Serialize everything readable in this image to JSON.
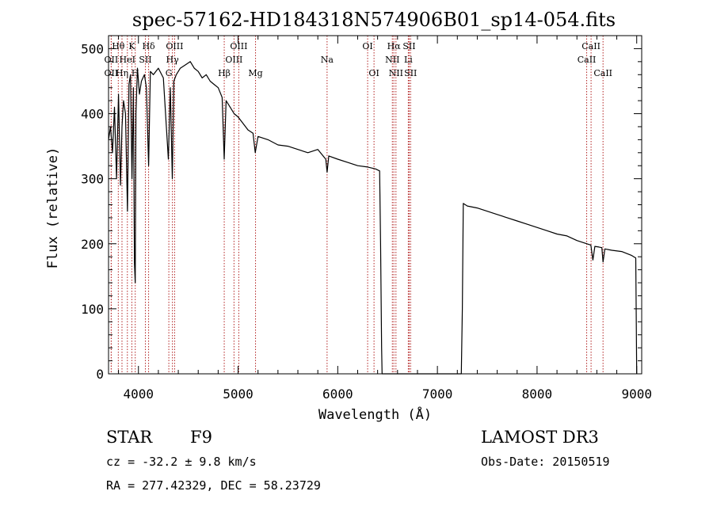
{
  "chart_data": {
    "type": "line",
    "title": "spec-57162-HD184318N574906B01_sp14-054.fits",
    "xlabel": "Wavelength (Å)",
    "ylabel": "Flux (relative)",
    "xlim": [
      3700,
      9050
    ],
    "ylim": [
      0,
      520
    ],
    "xticks": [
      4000,
      5000,
      6000,
      7000,
      8000,
      9000
    ],
    "yticks": [
      0,
      100,
      200,
      300,
      400,
      500
    ],
    "series": [
      {
        "name": "flux",
        "x": [
          3700,
          3720,
          3740,
          3760,
          3780,
          3800,
          3820,
          3835,
          3850,
          3870,
          3890,
          3905,
          3920,
          3935,
          3950,
          3960,
          3968,
          3975,
          3990,
          4010,
          4030,
          4060,
          4080,
          4102,
          4120,
          4150,
          4200,
          4250,
          4300,
          4320,
          4340,
          4355,
          4380,
          4420,
          4470,
          4520,
          4560,
          4600,
          4640,
          4680,
          4720,
          4760,
          4800,
          4840,
          4861,
          4880,
          4920,
          4960,
          5000,
          5050,
          5100,
          5150,
          5172,
          5200,
          5300,
          5400,
          5500,
          5600,
          5700,
          5800,
          5880,
          5893,
          5910,
          6000,
          6100,
          6200,
          6300,
          6380,
          6420,
          6430,
          6440,
          6445,
          7240,
          7250,
          7260,
          7300,
          7400,
          7500,
          7600,
          7700,
          7800,
          7900,
          8000,
          8100,
          8200,
          8300,
          8400,
          8500,
          8540,
          8560,
          8580,
          8620,
          8650,
          8662,
          8680,
          8750,
          8850,
          8950,
          8990,
          9000
        ],
        "values": [
          360,
          380,
          340,
          410,
          300,
          430,
          290,
          380,
          420,
          400,
          250,
          445,
          460,
          300,
          440,
          170,
          140,
          400,
          470,
          430,
          450,
          460,
          440,
          320,
          465,
          460,
          470,
          455,
          330,
          440,
          300,
          450,
          460,
          470,
          475,
          480,
          470,
          465,
          455,
          460,
          450,
          445,
          440,
          425,
          330,
          420,
          410,
          400,
          395,
          385,
          375,
          370,
          340,
          365,
          360,
          352,
          350,
          345,
          340,
          345,
          330,
          310,
          335,
          330,
          325,
          320,
          318,
          315,
          312,
          200,
          40,
          0,
          0,
          100,
          262,
          258,
          255,
          250,
          245,
          240,
          235,
          230,
          225,
          220,
          215,
          212,
          205,
          200,
          198,
          175,
          196,
          195,
          194,
          172,
          192,
          190,
          188,
          182,
          178,
          0
        ]
      }
    ],
    "lines": [
      {
        "name": "OII",
        "x": 3727,
        "row": 2
      },
      {
        "name": "Hθ",
        "x": 3798,
        "row": 1
      },
      {
        "name": "OII",
        "x": 3727,
        "row": 3
      },
      {
        "name": "Hη",
        "x": 3835,
        "row": 3
      },
      {
        "name": "HeI",
        "x": 3889,
        "row": 2
      },
      {
        "name": "K",
        "x": 3934,
        "row": 1
      },
      {
        "name": "H",
        "x": 3968,
        "row": 3
      },
      {
        "name": "Hδ",
        "x": 4102,
        "row": 1
      },
      {
        "name": "SII",
        "x": 4070,
        "row": 2
      },
      {
        "name": "OIII",
        "x": 4363,
        "row": 1
      },
      {
        "name": "Hγ",
        "x": 4341,
        "row": 2
      },
      {
        "name": "G",
        "x": 4305,
        "row": 3
      },
      {
        "name": "Hβ",
        "x": 4861,
        "row": 3
      },
      {
        "name": "OIII",
        "x": 5007,
        "row": 1
      },
      {
        "name": "OIII",
        "x": 4959,
        "row": 2
      },
      {
        "name": "Mg",
        "x": 5175,
        "row": 3
      },
      {
        "name": "Na",
        "x": 5893,
        "row": 2
      },
      {
        "name": "OI",
        "x": 6300,
        "row": 1
      },
      {
        "name": "OI",
        "x": 6364,
        "row": 3
      },
      {
        "name": "Hα",
        "x": 6563,
        "row": 1
      },
      {
        "name": "NII",
        "x": 6548,
        "row": 2
      },
      {
        "name": "NII",
        "x": 6584,
        "row": 3
      },
      {
        "name": "SII",
        "x": 6717,
        "row": 1
      },
      {
        "name": "Li",
        "x": 6708,
        "row": 2
      },
      {
        "name": "SII",
        "x": 6731,
        "row": 3
      },
      {
        "name": "CaII",
        "x": 8542,
        "row": 1
      },
      {
        "name": "CaII",
        "x": 8498,
        "row": 2
      },
      {
        "name": "CaII",
        "x": 8662,
        "row": 3
      }
    ]
  },
  "info": {
    "object_class": "STAR",
    "subclass": "F9",
    "survey": "LAMOST DR3",
    "redshift": "cz = -32.2 ± 9.8 km/s",
    "obs_date": "Obs-Date: 20150519",
    "coords": "RA = 277.42329, DEC =  58.23729"
  }
}
